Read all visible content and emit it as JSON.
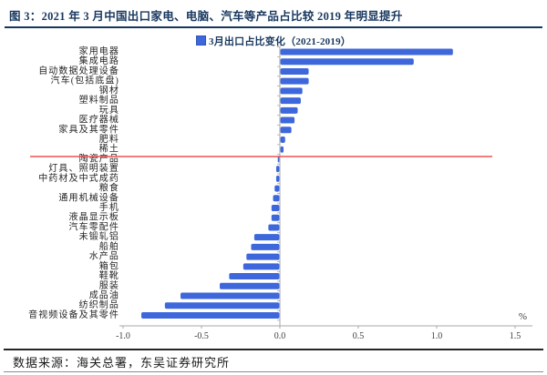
{
  "header": {
    "title": "图 3：2021 年 3 月中国出口家电、电脑、汽车等产品占比较 2019 年明显提升"
  },
  "chart_data": {
    "type": "bar",
    "orientation": "horizontal",
    "legend": "3月出口占比变化（2021-2019）",
    "categories": [
      "家用电器",
      "集成电路",
      "自动数据处理设备",
      "汽车(包括底盘)",
      "钢材",
      "塑料制品",
      "玩具",
      "医疗器械",
      "家具及其零件",
      "肥料",
      "稀土",
      "陶瓷产品",
      "灯具、照明装置",
      "中药材及中式成药",
      "粮食",
      "通用机械设备",
      "手机",
      "液晶显示板",
      "汽车零配件",
      "未锻轧铝",
      "船舶",
      "水产品",
      "箱包",
      "鞋靴",
      "服装",
      "成品油",
      "纺织制品",
      "音视频设备及其零件"
    ],
    "values": [
      1.1,
      0.85,
      0.18,
      0.18,
      0.14,
      0.13,
      0.11,
      0.09,
      0.07,
      0.03,
      0.02,
      -0.01,
      -0.02,
      -0.02,
      -0.03,
      -0.04,
      -0.05,
      -0.05,
      -0.07,
      -0.16,
      -0.18,
      -0.21,
      -0.23,
      -0.32,
      -0.38,
      -0.63,
      -0.73,
      -0.88
    ],
    "unit": "%",
    "xlim": [
      -1.0,
      1.6
    ],
    "xticks": [
      -1.0,
      -0.5,
      0.0,
      0.5,
      1.0,
      1.5
    ],
    "xtick_labels": [
      "-1.0",
      "-0.5",
      "0.0",
      "0.5",
      "1.0",
      "1.5"
    ],
    "bar_color": "#3d67db",
    "grid": false,
    "legend_position": "top-center",
    "annotation_line": {
      "color": "#ee4545",
      "after_category": "稀土"
    }
  },
  "footer": {
    "source": "数据来源：海关总署，东吴证券研究所"
  },
  "colors": {
    "title": "#17375e",
    "bar": "#3d67db",
    "red_line": "#ee4545",
    "axis": "#aaaaaa",
    "tick_label": "#404040"
  }
}
